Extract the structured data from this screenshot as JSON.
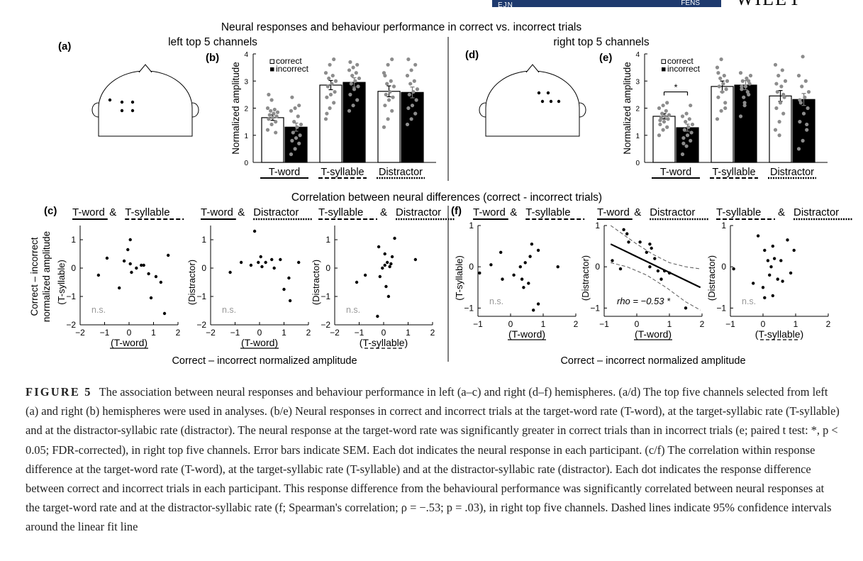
{
  "journal_header": {
    "left": "EJN",
    "right": "FENS",
    "publisher": "WILEY"
  },
  "figure": {
    "main_title": "Neural responses and behaviour performance in correct vs. incorrect trials",
    "correlation_title": "Correlation between neural differences (correct - incorrect trials)",
    "left_heading": "left top 5 channels",
    "right_heading": "right top 5 channels",
    "labels": {
      "a": "(a)",
      "b": "(b)",
      "c": "(c)",
      "d": "(d)",
      "e": "(e)",
      "f": "(f)"
    },
    "legend": {
      "correct": "correct",
      "incorrect": "incorrect"
    },
    "bar_ylabel": "Normalized amplitude",
    "categories": [
      "T-word",
      "T-syllable",
      "Distractor"
    ],
    "scatter_common_xlabel": "Correct – incorrect normalized amplitude",
    "scatter_c_ylabel_lines": [
      "Correct – incorrect",
      "normalized amplitude"
    ],
    "pair_titles": [
      {
        "a": "T-word",
        "b": "T-syllable"
      },
      {
        "a": "T-word",
        "b": "Distractor"
      },
      {
        "a": "T-syllable",
        "b": "Distractor"
      }
    ],
    "panel_axis_labels": {
      "x": [
        "(T-word)",
        "(T-word)",
        "(T-syllable)"
      ],
      "y": [
        "(T-syllable)",
        "(Distractor)",
        "(Distractor)"
      ]
    },
    "ns_label": "n.s.",
    "rho_text": "rho = −0.53 *",
    "significance_marker": "*"
  },
  "chart_data": [
    {
      "type": "bar",
      "panel": "(b)",
      "hemisphere": "left",
      "categories": [
        "T-word",
        "T-syllable",
        "Distractor"
      ],
      "series": [
        {
          "name": "correct",
          "values": [
            1.65,
            2.85,
            2.62
          ],
          "sem": [
            0.1,
            0.17,
            0.2
          ]
        },
        {
          "name": "incorrect",
          "values": [
            1.3,
            2.95,
            2.58
          ],
          "sem": [
            0.15,
            0.17,
            0.2
          ]
        }
      ],
      "ylabel": "Normalized amplitude",
      "ylim": [
        0,
        4
      ],
      "yticks": [
        0,
        1,
        2,
        3,
        4
      ],
      "points": [
        [
          1.2,
          1.4,
          1.5,
          1.6,
          1.65,
          1.7,
          1.75,
          1.8,
          1.85,
          1.9,
          1.95,
          2.0,
          2.3,
          1.1,
          2.5
        ],
        [
          0.3,
          0.5,
          0.7,
          0.8,
          0.9,
          1.0,
          1.1,
          1.3,
          1.4,
          1.5,
          1.7,
          1.9,
          2.0,
          2.1,
          2.4
        ],
        [
          1.6,
          2.0,
          2.2,
          2.4,
          2.5,
          2.6,
          2.8,
          2.9,
          3.0,
          3.1,
          3.2,
          3.3,
          3.6,
          3.8,
          1.8
        ],
        [
          1.9,
          2.1,
          2.3,
          2.5,
          2.7,
          2.8,
          2.9,
          3.0,
          3.1,
          3.2,
          3.3,
          3.4,
          3.5,
          3.6,
          3.7
        ],
        [
          1.3,
          1.6,
          1.9,
          2.1,
          2.3,
          2.4,
          2.5,
          2.6,
          2.8,
          2.9,
          3.0,
          3.3,
          3.6,
          3.8,
          3.2
        ],
        [
          1.4,
          1.6,
          1.8,
          2.0,
          2.1,
          2.3,
          2.5,
          2.6,
          2.7,
          2.9,
          3.0,
          3.2,
          3.4,
          3.6,
          3.8
        ]
      ]
    },
    {
      "type": "bar",
      "panel": "(e)",
      "hemisphere": "right",
      "categories": [
        "T-word",
        "T-syllable",
        "Distractor"
      ],
      "series": [
        {
          "name": "correct",
          "values": [
            1.7,
            2.8,
            2.45
          ],
          "sem": [
            0.1,
            0.2,
            0.2
          ]
        },
        {
          "name": "incorrect",
          "values": [
            1.28,
            2.85,
            2.32
          ],
          "sem": [
            0.13,
            0.17,
            0.22
          ]
        }
      ],
      "ylabel": "Normalized amplitude",
      "ylim": [
        0,
        4
      ],
      "yticks": [
        0,
        1,
        2,
        3,
        4
      ],
      "significance": {
        "pair": "T-word",
        "label": "*"
      },
      "points": [
        [
          1.0,
          1.2,
          1.3,
          1.4,
          1.5,
          1.6,
          1.65,
          1.7,
          1.75,
          1.8,
          1.9,
          2.0,
          2.1,
          2.2,
          1.55
        ],
        [
          0.3,
          0.6,
          0.8,
          0.9,
          1.0,
          1.1,
          1.2,
          1.3,
          1.4,
          1.5,
          1.6,
          1.7,
          1.8,
          2.1,
          0.7
        ],
        [
          1.6,
          1.9,
          2.2,
          2.4,
          2.6,
          2.7,
          2.8,
          2.9,
          3.0,
          3.1,
          3.2,
          3.5,
          3.8,
          2.0,
          3.3
        ],
        [
          1.7,
          2.2,
          2.5,
          2.7,
          2.8,
          2.9,
          3.0,
          3.1,
          3.2,
          2.4,
          2.6,
          3.3,
          2.1,
          3.0,
          2.8
        ],
        [
          1.2,
          1.5,
          1.8,
          2.0,
          2.2,
          2.4,
          2.6,
          2.8,
          3.0,
          3.2,
          3.4,
          3.6,
          1.0,
          2.5,
          2.9
        ],
        [
          0.5,
          0.8,
          1.2,
          1.5,
          1.8,
          2.0,
          2.2,
          2.4,
          2.6,
          2.8,
          3.0,
          3.2,
          3.9,
          1.4,
          2.3
        ]
      ]
    },
    {
      "type": "scatter",
      "panel": "(c)",
      "hemisphere": "left",
      "panels": [
        {
          "xlim": [
            -2,
            2
          ],
          "ylim": [
            -2,
            1.5
          ],
          "xticks": [
            -2,
            -1,
            0,
            1,
            2
          ],
          "yticks": [
            -2,
            -1,
            0,
            1
          ],
          "xlabel": "(T-word)",
          "ylabel": "(T-syllable)",
          "annotation": "n.s.",
          "points": [
            [
              -1.25,
              -0.25
            ],
            [
              -0.9,
              0.35
            ],
            [
              -0.4,
              -0.7
            ],
            [
              -0.2,
              0.25
            ],
            [
              -0.05,
              0.65
            ],
            [
              0.05,
              1.0
            ],
            [
              0.05,
              0.15
            ],
            [
              0.1,
              -0.15
            ],
            [
              0.3,
              0.0
            ],
            [
              0.5,
              0.1
            ],
            [
              0.6,
              0.1
            ],
            [
              0.8,
              -0.2
            ],
            [
              0.9,
              -1.05
            ],
            [
              1.1,
              -0.3
            ],
            [
              1.3,
              -0.5
            ],
            [
              1.45,
              -1.6
            ],
            [
              1.6,
              0.45
            ]
          ]
        },
        {
          "xlim": [
            -2,
            2
          ],
          "ylim": [
            -2,
            1.5
          ],
          "xticks": [
            -2,
            -1,
            0,
            1,
            2
          ],
          "yticks": [
            -2,
            -1,
            0,
            1
          ],
          "xlabel": "(T-word)",
          "ylabel": "(Distractor)",
          "annotation": "n.s.",
          "points": [
            [
              -1.2,
              -0.15
            ],
            [
              -0.75,
              0.2
            ],
            [
              -0.2,
              1.3
            ],
            [
              -0.35,
              0.1
            ],
            [
              -0.05,
              0.2
            ],
            [
              0.05,
              0.4
            ],
            [
              0.1,
              0.05
            ],
            [
              0.25,
              0.2
            ],
            [
              0.5,
              0.3
            ],
            [
              0.6,
              0.0
            ],
            [
              0.85,
              0.3
            ],
            [
              1.0,
              -0.75
            ],
            [
              1.2,
              -0.35
            ],
            [
              1.25,
              -1.15
            ],
            [
              1.6,
              0.2
            ]
          ]
        },
        {
          "xlim": [
            -2,
            2
          ],
          "ylim": [
            -2,
            1.5
          ],
          "xticks": [
            -2,
            -1,
            0,
            1,
            2
          ],
          "yticks": [
            -2,
            -1,
            0,
            1
          ],
          "xlabel": "(T-syllable)",
          "ylabel": "(Distractor)",
          "annotation": "n.s.",
          "points": [
            [
              -1.1,
              -0.5
            ],
            [
              -0.75,
              -0.25
            ],
            [
              -0.15,
              -0.3
            ],
            [
              -0.2,
              0.75
            ],
            [
              -0.05,
              0.0
            ],
            [
              0.05,
              0.5
            ],
            [
              0.05,
              0.1
            ],
            [
              0.1,
              -0.65
            ],
            [
              0.15,
              0.2
            ],
            [
              0.2,
              -1.0
            ],
            [
              0.3,
              0.15
            ],
            [
              0.35,
              0.4
            ],
            [
              0.25,
              0.05
            ],
            [
              -0.25,
              -1.7
            ],
            [
              0.45,
              1.05
            ],
            [
              1.3,
              0.3
            ]
          ]
        }
      ]
    },
    {
      "type": "scatter",
      "panel": "(f)",
      "hemisphere": "right",
      "panels": [
        {
          "xlim": [
            -1,
            2
          ],
          "ylim": [
            -1.2,
            1
          ],
          "xticks": [
            -1,
            0,
            1,
            2
          ],
          "yticks": [
            -1,
            0,
            1
          ],
          "xlabel": "(T-word)",
          "ylabel": "(T-syllable)",
          "annotation": "n.s.",
          "points": [
            [
              -0.95,
              -0.15
            ],
            [
              -0.6,
              0.05
            ],
            [
              -0.3,
              0.35
            ],
            [
              -0.25,
              -0.3
            ],
            [
              0.1,
              -0.2
            ],
            [
              0.3,
              0.0
            ],
            [
              0.35,
              -0.3
            ],
            [
              0.4,
              -0.5
            ],
            [
              0.45,
              0.1
            ],
            [
              0.55,
              -0.4
            ],
            [
              0.6,
              0.25
            ],
            [
              0.65,
              0.55
            ],
            [
              0.7,
              -1.05
            ],
            [
              0.85,
              0.4
            ],
            [
              0.85,
              -0.9
            ],
            [
              1.45,
              0.0
            ]
          ]
        },
        {
          "xlim": [
            -1,
            2
          ],
          "ylim": [
            -1.2,
            1
          ],
          "xticks": [
            -1,
            0,
            1,
            2
          ],
          "yticks": [
            -1,
            0,
            1
          ],
          "xlabel": "(T-word)",
          "ylabel": "(Distractor)",
          "annotation": "rho = −0.53 *",
          "fit_line": [
            [
              -0.8,
              0.55
            ],
            [
              1.95,
              -0.5
            ]
          ],
          "ci_upper": [
            [
              -0.8,
              1.0
            ],
            [
              0.0,
              0.55
            ],
            [
              0.5,
              0.3
            ],
            [
              1.0,
              0.1
            ],
            [
              1.5,
              0.0
            ],
            [
              1.95,
              -0.05
            ]
          ],
          "ci_lower": [
            [
              -0.8,
              0.1
            ],
            [
              -0.3,
              0.0
            ],
            [
              0.3,
              -0.2
            ],
            [
              0.9,
              -0.5
            ],
            [
              1.5,
              -0.85
            ],
            [
              1.95,
              -1.05
            ]
          ],
          "points": [
            [
              -0.75,
              0.15
            ],
            [
              -0.5,
              -0.05
            ],
            [
              -0.4,
              0.9
            ],
            [
              -0.3,
              0.8
            ],
            [
              -0.25,
              0.6
            ],
            [
              0.1,
              0.6
            ],
            [
              0.3,
              0.35
            ],
            [
              0.4,
              0.55
            ],
            [
              0.45,
              0.45
            ],
            [
              0.4,
              0.0
            ],
            [
              0.55,
              0.2
            ],
            [
              0.65,
              -0.1
            ],
            [
              0.75,
              -0.3
            ],
            [
              0.85,
              -0.1
            ],
            [
              1.0,
              -0.15
            ],
            [
              1.5,
              -1.0
            ]
          ]
        },
        {
          "xlim": [
            -1,
            2
          ],
          "ylim": [
            -1.2,
            1
          ],
          "xticks": [
            -1,
            0,
            1,
            2
          ],
          "yticks": [
            -1,
            0,
            1
          ],
          "xlabel": "(T-syllable)",
          "ylabel": "(Distractor)",
          "annotation": "n.s.",
          "points": [
            [
              -0.9,
              -0.05
            ],
            [
              -0.3,
              -0.4
            ],
            [
              -0.15,
              0.75
            ],
            [
              0.0,
              -0.5
            ],
            [
              0.05,
              0.4
            ],
            [
              0.15,
              0.15
            ],
            [
              0.2,
              -0.2
            ],
            [
              0.25,
              0.0
            ],
            [
              0.3,
              -0.7
            ],
            [
              0.3,
              0.5
            ],
            [
              0.35,
              0.2
            ],
            [
              0.45,
              -0.3
            ],
            [
              0.55,
              0.15
            ],
            [
              0.6,
              -0.35
            ],
            [
              0.75,
              0.65
            ],
            [
              0.85,
              -0.15
            ],
            [
              0.95,
              0.4
            ],
            [
              0.05,
              -0.75
            ]
          ]
        }
      ]
    }
  ],
  "caption": {
    "label": "FIGURE 5",
    "text": "The association between neural responses and behaviour performance in left (a–c) and right (d–f) hemispheres. (a/d) The top five channels selected from left (a) and right (b) hemispheres were used in analyses. (b/e) Neural responses in correct and incorrect trials at the target-word rate (T-word), at the target-syllabic rate (T-syllable) and at the distractor-syllabic rate (distractor). The neural response at the target-word rate was significantly greater in correct trials than in incorrect trials (e; paired t test: *, p < 0.05; FDR-corrected), in right top five channels. Error bars indicate SEM. Each dot indicates the neural response in each participant. (c/f) The correlation within response difference at the target-word rate (T-word), at the target-syllabic rate (T-syllable) and at the distractor-syllabic rate (distractor). Each dot indicates the response difference between correct and incorrect trials in each participant. This response difference from the behavioural performance was significantly correlated between neural responses at the target-word rate and at the distractor-syllabic rate (f; Spearman's correlation; ρ = −.53; p = .03), in right top five channels. Dashed lines indicate 95% confidence intervals around the linear fit line"
  }
}
